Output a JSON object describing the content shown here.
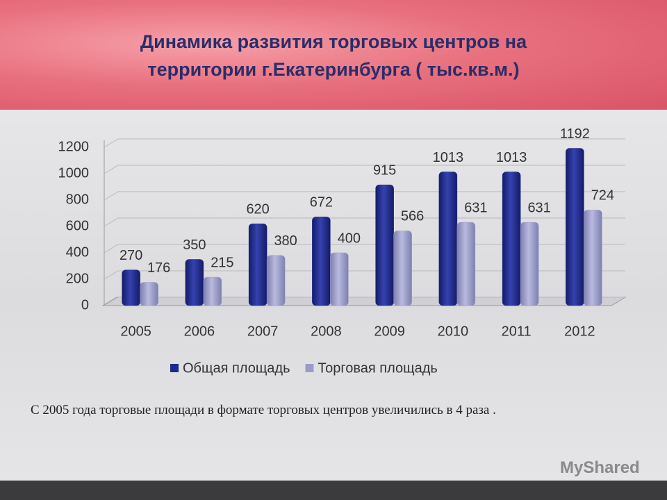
{
  "chart_data": {
    "type": "bar",
    "title": "Динамика развития торговых центров на территории г.Екатеринбурга ( тыс.кв.м.)",
    "categories": [
      "2005",
      "2006",
      "2007",
      "2008",
      "2009",
      "2010",
      "2011",
      "2012"
    ],
    "series": [
      {
        "name": "Общая площадь",
        "color": "#1f2a8c",
        "values": [
          270,
          350,
          620,
          672,
          915,
          1013,
          1013,
          1192
        ]
      },
      {
        "name": "Торговая площадь",
        "color": "#9a9cc8",
        "values": [
          176,
          215,
          380,
          400,
          566,
          631,
          631,
          724
        ]
      }
    ],
    "ylim": [
      0,
      1200
    ],
    "yticks": [
      0,
      200,
      400,
      600,
      800,
      1000,
      1200
    ],
    "grid": true,
    "legend": "bottom"
  },
  "footnote": "С 2005 года  торговые площади в формате  торговых центров увеличились в 4 раза .",
  "watermark": "MyShared"
}
